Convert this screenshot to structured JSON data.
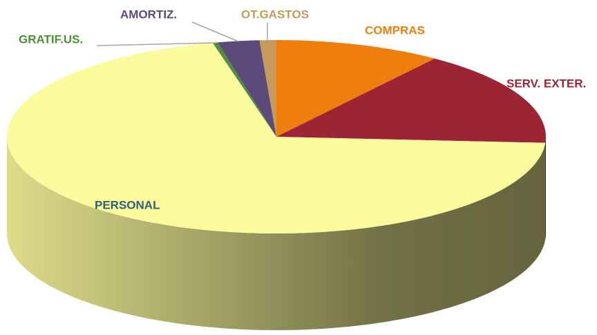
{
  "chart_data": {
    "type": "pie3d",
    "categories": [
      "COMPRAS",
      "SERV. EXTER.",
      "PERSONAL",
      "GRATIF.US.",
      "AMORTIZ.",
      "OT.GASTOS"
    ],
    "values": [
      10,
      16,
      70.2,
      0.3,
      2.5,
      1
    ],
    "colors": [
      "#ee7f0c",
      "#9c2535",
      "#fbfa9c",
      "#4f8f3a",
      "#5d4a7c",
      "#c69a5c"
    ],
    "label_colors": [
      "#ee7f0c",
      "#9c2535",
      "#2f5f78",
      "#4f8f3a",
      "#5d4a7c",
      "#c69a5c"
    ]
  }
}
